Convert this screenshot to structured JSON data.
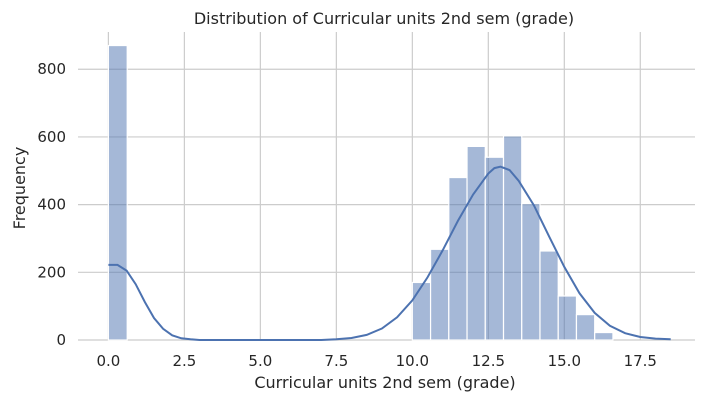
{
  "chart_data": {
    "type": "bar",
    "title": "Distribution of Curricular units 2nd sem (grade)",
    "xlabel": "Curricular units 2nd sem (grade)",
    "ylabel": "Frequency",
    "xlim": [
      -1,
      19.3
    ],
    "ylim": [
      0,
      910
    ],
    "xticks": [
      0,
      2.5,
      5,
      7.5,
      10,
      12.5,
      15,
      17.5
    ],
    "xtick_labels": [
      "0.0",
      "2.5",
      "5.0",
      "7.5",
      "10.0",
      "12.5",
      "15.0",
      "17.5"
    ],
    "yticks": [
      0,
      200,
      400,
      600,
      800
    ],
    "ytick_labels": [
      "0",
      "200",
      "400",
      "600",
      "800"
    ],
    "grid": true,
    "colors": {
      "bar": "#4c72b0",
      "kde": "#4c72b0",
      "grid": "#cccccc"
    },
    "bins": [
      {
        "x0": 0.0,
        "x1": 0.619,
        "count": 870
      },
      {
        "x0": 0.619,
        "x1": 1.238,
        "count": 0
      },
      {
        "x0": 1.238,
        "x1": 1.857,
        "count": 0
      },
      {
        "x0": 1.857,
        "x1": 2.476,
        "count": 0
      },
      {
        "x0": 2.476,
        "x1": 3.095,
        "count": 0
      },
      {
        "x0": 3.095,
        "x1": 3.714,
        "count": 0
      },
      {
        "x0": 3.714,
        "x1": 4.333,
        "count": 0
      },
      {
        "x0": 4.333,
        "x1": 4.952,
        "count": 0
      },
      {
        "x0": 4.952,
        "x1": 5.571,
        "count": 0
      },
      {
        "x0": 5.571,
        "x1": 6.19,
        "count": 0
      },
      {
        "x0": 6.19,
        "x1": 6.809,
        "count": 0
      },
      {
        "x0": 6.809,
        "x1": 7.428,
        "count": 0
      },
      {
        "x0": 7.428,
        "x1": 8.047,
        "count": 0
      },
      {
        "x0": 8.047,
        "x1": 8.666,
        "count": 0
      },
      {
        "x0": 8.666,
        "x1": 9.285,
        "count": 0
      },
      {
        "x0": 9.285,
        "x1": 9.904,
        "count": 0
      },
      {
        "x0": 10.0,
        "x1": 10.6,
        "count": 170
      },
      {
        "x0": 10.6,
        "x1": 11.2,
        "count": 268
      },
      {
        "x0": 11.2,
        "x1": 11.8,
        "count": 480
      },
      {
        "x0": 11.8,
        "x1": 12.4,
        "count": 572
      },
      {
        "x0": 12.4,
        "x1": 13.0,
        "count": 540
      },
      {
        "x0": 13.0,
        "x1": 13.6,
        "count": 603
      },
      {
        "x0": 13.6,
        "x1": 14.2,
        "count": 403
      },
      {
        "x0": 14.2,
        "x1": 14.8,
        "count": 263
      },
      {
        "x0": 14.8,
        "x1": 15.4,
        "count": 130
      },
      {
        "x0": 15.4,
        "x1": 16.0,
        "count": 75
      },
      {
        "x0": 16.0,
        "x1": 16.6,
        "count": 22
      }
    ],
    "kde": [
      [
        0.0,
        222
      ],
      [
        0.3,
        222
      ],
      [
        0.6,
        205
      ],
      [
        0.9,
        165
      ],
      [
        1.2,
        112
      ],
      [
        1.5,
        65
      ],
      [
        1.8,
        33
      ],
      [
        2.1,
        14
      ],
      [
        2.4,
        5
      ],
      [
        2.7,
        2
      ],
      [
        3.0,
        0
      ],
      [
        7.0,
        0
      ],
      [
        7.5,
        2
      ],
      [
        8.0,
        6
      ],
      [
        8.5,
        15
      ],
      [
        9.0,
        34
      ],
      [
        9.5,
        67
      ],
      [
        10.0,
        117
      ],
      [
        10.5,
        185
      ],
      [
        11.0,
        265
      ],
      [
        11.5,
        352
      ],
      [
        12.0,
        430
      ],
      [
        12.5,
        492
      ],
      [
        12.7,
        508
      ],
      [
        12.9,
        512
      ],
      [
        13.2,
        502
      ],
      [
        13.5,
        470
      ],
      [
        14.0,
        398
      ],
      [
        14.5,
        306
      ],
      [
        15.0,
        216
      ],
      [
        15.5,
        138
      ],
      [
        16.0,
        80
      ],
      [
        16.5,
        42
      ],
      [
        17.0,
        20
      ],
      [
        17.5,
        9
      ],
      [
        18.0,
        4
      ],
      [
        18.5,
        2
      ]
    ]
  }
}
